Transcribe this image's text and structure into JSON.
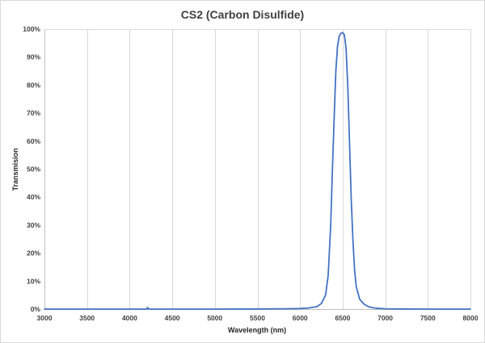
{
  "chart_data": {
    "type": "line",
    "title": "CS2 (Carbon Disulfide)",
    "xlabel": "Wavelength (nm)",
    "ylabel": "Transmision",
    "xlim": [
      3000,
      8000
    ],
    "ylim": [
      0,
      100
    ],
    "x_ticks": [
      3000,
      3500,
      4000,
      4500,
      5000,
      5500,
      6000,
      6500,
      7000,
      7500,
      8000
    ],
    "y_ticks": [
      0,
      10,
      20,
      30,
      40,
      50,
      60,
      70,
      80,
      90,
      100
    ],
    "y_tick_labels": [
      "0%",
      "10%",
      "20%",
      "30%",
      "40%",
      "50%",
      "60%",
      "70%",
      "80%",
      "90%",
      "100%"
    ],
    "x_tick_labels": [
      "3000",
      "3500",
      "4000",
      "4500",
      "5000",
      "5500",
      "6000",
      "6500",
      "7000",
      "7500",
      "8000"
    ],
    "grid": "vertical",
    "legend": "none",
    "line_color": "#4472c4",
    "series": [
      {
        "x": [
          3000,
          3500,
          4000,
          4200,
          4210,
          4220,
          4230,
          4500,
          5000,
          5500,
          5800,
          6000,
          6100,
          6200,
          6250,
          6300,
          6330,
          6360,
          6380,
          6400,
          6420,
          6440,
          6460,
          6480,
          6500,
          6520,
          6540,
          6560,
          6580,
          6600,
          6620,
          6640,
          6660,
          6700,
          6750,
          6800,
          6850,
          6900,
          7000,
          7200,
          7500,
          8000
        ],
        "y": [
          0.0,
          0.0,
          0.0,
          0.0,
          0.6,
          0.1,
          0.0,
          0.0,
          0.0,
          0.05,
          0.1,
          0.2,
          0.4,
          0.9,
          2.0,
          5.0,
          12.0,
          30.0,
          50.0,
          68.0,
          85.0,
          94.0,
          97.5,
          98.5,
          98.7,
          98.0,
          93.0,
          80.0,
          60.0,
          40.0,
          25.0,
          14.0,
          8.0,
          3.5,
          1.8,
          0.9,
          0.5,
          0.3,
          0.1,
          0.05,
          0.0,
          0.0
        ]
      }
    ]
  }
}
